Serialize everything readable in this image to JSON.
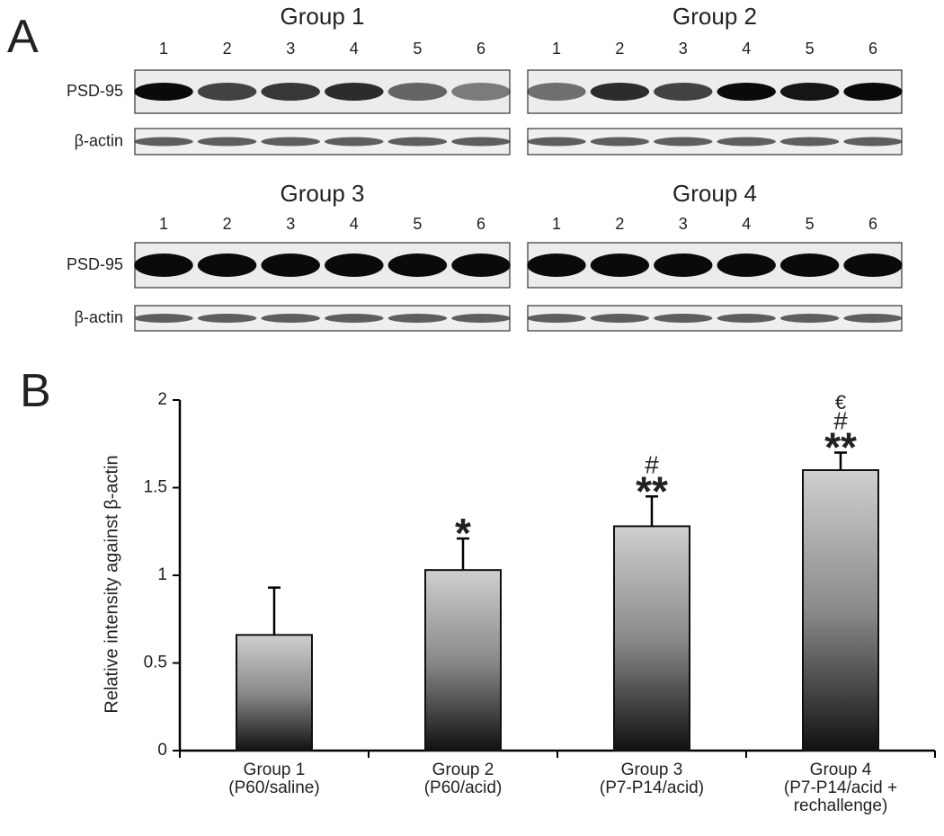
{
  "panel_a": {
    "label": "A",
    "rows": [
      "PSD-95",
      "β-actin"
    ],
    "groups": [
      {
        "title": "Group 1",
        "lanes": [
          "1",
          "2",
          "3",
          "4",
          "5",
          "6"
        ]
      },
      {
        "title": "Group 2",
        "lanes": [
          "1",
          "2",
          "3",
          "4",
          "5",
          "6"
        ]
      },
      {
        "title": "Group 3",
        "lanes": [
          "1",
          "2",
          "3",
          "4",
          "5",
          "6"
        ]
      },
      {
        "title": "Group 4",
        "lanes": [
          "1",
          "2",
          "3",
          "4",
          "5",
          "6"
        ]
      }
    ]
  },
  "panel_b": {
    "label": "B"
  },
  "chart_data": {
    "type": "bar",
    "ylabel": "Relative intensity against β-actin",
    "categories": [
      [
        "Group 1",
        "(P60/saline)"
      ],
      [
        "Group 2",
        "(P60/acid)"
      ],
      [
        "Group 3",
        "(P7-P14/acid)"
      ],
      [
        "Group 4",
        "(P7-P14/acid +",
        "rechallenge)"
      ]
    ],
    "values": [
      0.66,
      1.03,
      1.28,
      1.6
    ],
    "errors": [
      0.27,
      0.18,
      0.17,
      0.1
    ],
    "markers": [
      null,
      [
        "*"
      ],
      [
        "#",
        "**"
      ],
      [
        "€",
        "#",
        "**"
      ]
    ],
    "ylim": [
      0,
      2
    ],
    "yticks": [
      0,
      0.5,
      1,
      1.5,
      2
    ],
    "color": "#111111"
  }
}
